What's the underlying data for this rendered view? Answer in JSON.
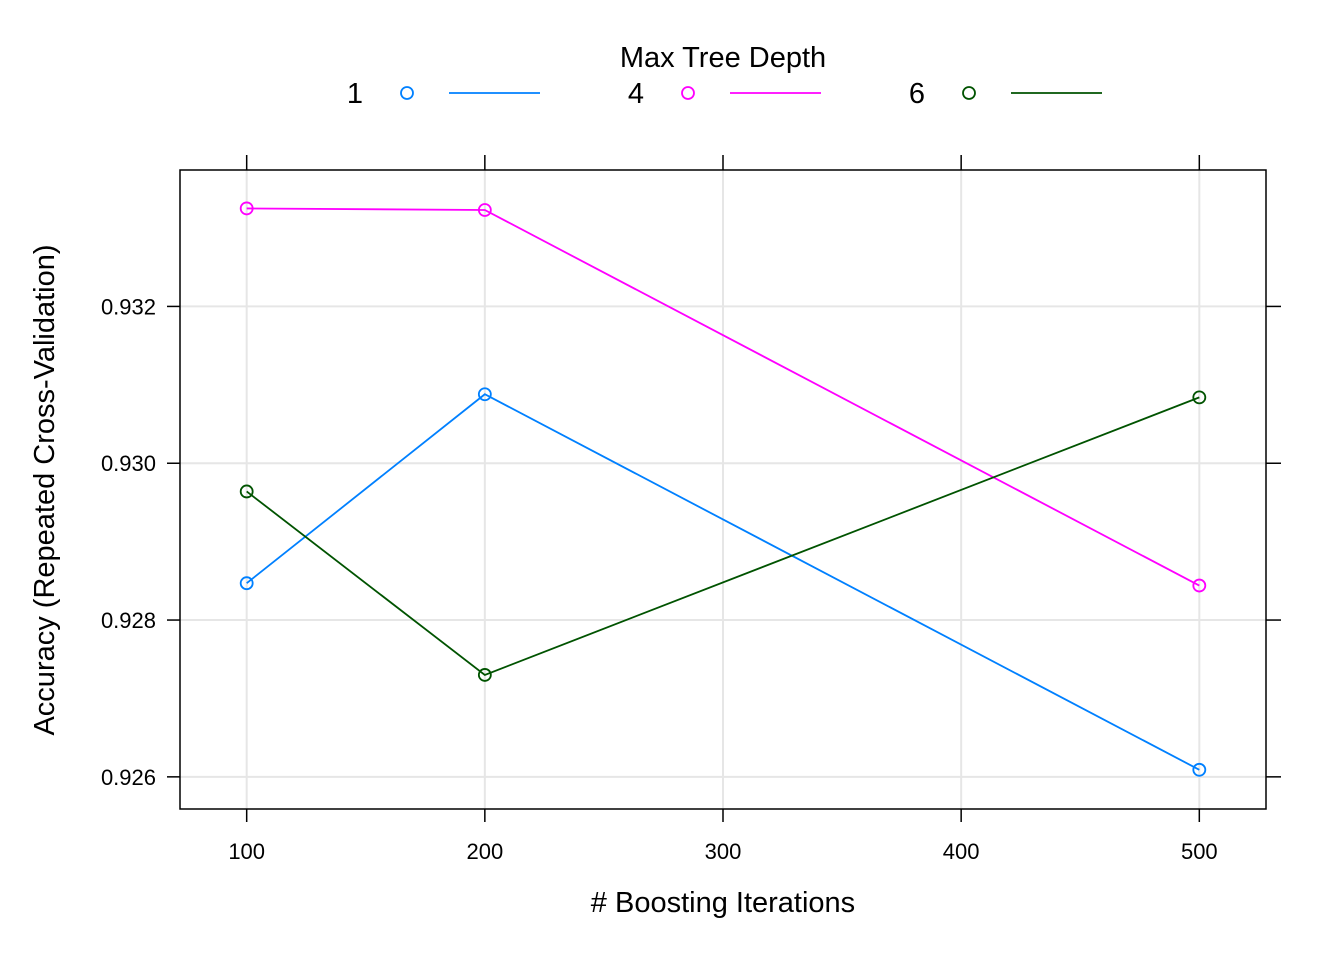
{
  "chart_data": {
    "type": "line",
    "title": "",
    "xlabel": "# Boosting Iterations",
    "ylabel": "Accuracy (Repeated Cross-Validation)",
    "legend": {
      "title": "Max Tree Depth",
      "placement": "top"
    },
    "x": [
      100,
      200,
      500
    ],
    "xticks": [
      100,
      200,
      300,
      400,
      500
    ],
    "yticks": [
      0.926,
      0.928,
      0.93,
      0.932
    ],
    "ytick_labels": [
      "0.926",
      "0.928",
      "0.930",
      "0.932"
    ],
    "xlim": [
      72,
      528
    ],
    "ylim": [
      0.92559,
      0.93374
    ],
    "grid": true,
    "series": [
      {
        "name": "1",
        "color": "#0080ff",
        "values": [
          0.92847,
          0.93088,
          0.92609
        ]
      },
      {
        "name": "4",
        "color": "#ff00ff",
        "values": [
          0.93325,
          0.93323,
          0.92844
        ]
      },
      {
        "name": "6",
        "color": "#005300",
        "values": [
          0.92964,
          0.9273,
          0.93084
        ]
      }
    ],
    "marker": "open-circle"
  }
}
